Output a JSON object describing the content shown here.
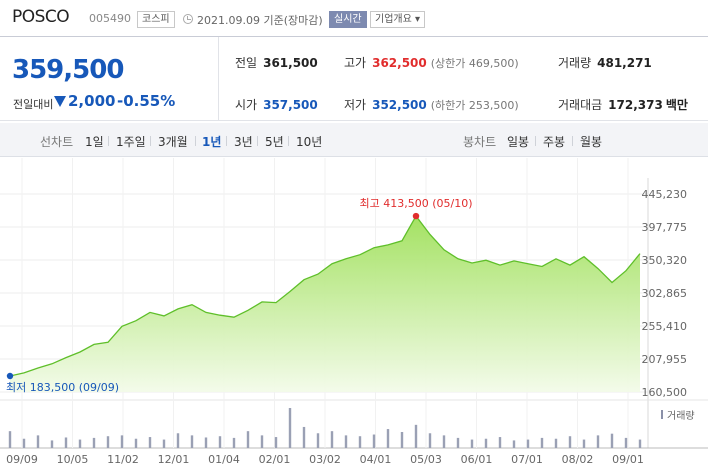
{
  "header": {
    "name": "POSCO",
    "code": "005490",
    "market": "코스피",
    "date": "2021.09.09 기준(장마감)",
    "realtime": "실시간",
    "company_info": "기업개요 ▾"
  },
  "summary": {
    "price": "359,500",
    "change_label": "전일대비",
    "change_value": "2,000",
    "change_pct": "-0.55%",
    "stats": {
      "prev_close": {
        "label": "전일",
        "value": "361,500"
      },
      "high": {
        "label": "고가",
        "value": "362,500",
        "sub": "(상한가 469,500)"
      },
      "volume": {
        "label": "거래량",
        "value": "481,271"
      },
      "open": {
        "label": "시가",
        "value": "357,500"
      },
      "low": {
        "label": "저가",
        "value": "352,500",
        "sub": "(하한가 253,500)"
      },
      "amount": {
        "label": "거래대금",
        "value": "172,373",
        "unit": "백만"
      }
    }
  },
  "tabs": {
    "line_chart": "선차트",
    "periods": [
      "1일",
      "1주일",
      "3개월",
      "1년",
      "3년",
      "5년",
      "10년"
    ],
    "active_period": "1년",
    "candle_chart": "봉차트",
    "candles": [
      "일봉",
      "주봉",
      "월봉"
    ]
  },
  "colors": {
    "price_down": "#1758b9",
    "price_up": "#e12d2d",
    "area_fill": "#b6ea7e",
    "area_line": "#5fbf2a"
  },
  "chart_data": {
    "type": "area",
    "y_ticks": [
      "445,230",
      "397,775",
      "350,320",
      "302,865",
      "255,410",
      "207,955",
      "160,500"
    ],
    "ylim": [
      160500,
      445230
    ],
    "x_ticks": [
      "09/09",
      "10/05",
      "11/02",
      "12/01",
      "01/04",
      "02/01",
      "03/02",
      "04/01",
      "05/03",
      "06/01",
      "07/01",
      "08/02",
      "09/01"
    ],
    "max_label": "최고 413,500 (05/10)",
    "min_label": "최저 183,500 (09/09)",
    "volume_legend": "거래량",
    "x": [
      "09/09",
      "09/18",
      "10/05",
      "10/15",
      "10/23",
      "11/02",
      "11/12",
      "11/20",
      "12/01",
      "12/10",
      "12/18",
      "12/29",
      "01/04",
      "01/12",
      "01/20",
      "01/28",
      "02/01",
      "02/10",
      "02/19",
      "02/26",
      "03/02",
      "03/10",
      "03/18",
      "03/26",
      "04/01",
      "04/09",
      "04/19",
      "04/27",
      "05/03",
      "05/10",
      "05/18",
      "05/26",
      "06/01",
      "06/10",
      "06/18",
      "06/28",
      "07/01",
      "07/09",
      "07/19",
      "07/28",
      "08/02",
      "08/11",
      "08/19",
      "08/27",
      "09/01",
      "09/09"
    ],
    "values": [
      183500,
      188000,
      195000,
      201000,
      210000,
      218000,
      229000,
      232000,
      255000,
      263000,
      275000,
      270000,
      280000,
      286000,
      275000,
      271000,
      268000,
      278000,
      290000,
      289000,
      305000,
      322000,
      330000,
      345000,
      352000,
      358000,
      368000,
      372000,
      378000,
      413500,
      387000,
      365000,
      352000,
      346000,
      350000,
      343000,
      349000,
      345000,
      341000,
      352000,
      343000,
      355000,
      338000,
      318000,
      335000,
      359500
    ],
    "volume": [
      40,
      22,
      30,
      18,
      25,
      20,
      24,
      28,
      30,
      22,
      26,
      20,
      35,
      30,
      25,
      28,
      24,
      40,
      30,
      26,
      95,
      50,
      35,
      40,
      30,
      28,
      32,
      45,
      38,
      55,
      35,
      30,
      24,
      20,
      22,
      26,
      18,
      20,
      24,
      22,
      28,
      20,
      30,
      34,
      24,
      20
    ]
  }
}
